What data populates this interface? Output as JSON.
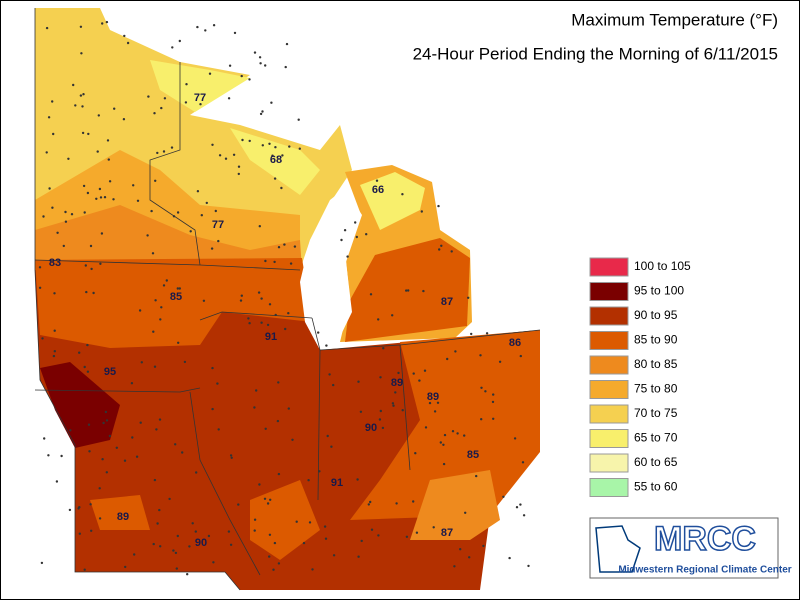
{
  "title": "Maximum Temperature (°F)",
  "subtitle": "24-Hour Period Ending the Morning of 6/11/2015",
  "legend": [
    {
      "label": "100 to 105",
      "color": "#e8294a"
    },
    {
      "label": "95 to 100",
      "color": "#7a0000"
    },
    {
      "label": "90 to 95",
      "color": "#b33000"
    },
    {
      "label": "85 to 90",
      "color": "#dc5a00"
    },
    {
      "label": "80 to 85",
      "color": "#ee8a1e"
    },
    {
      "label": "75 to 80",
      "color": "#f5aa2c"
    },
    {
      "label": "70 to 75",
      "color": "#f5d050"
    },
    {
      "label": "65 to 70",
      "color": "#f8ef6c"
    },
    {
      "label": "60 to 65",
      "color": "#f7f4ab"
    },
    {
      "label": "55 to 60",
      "color": "#a8f5a8"
    }
  ],
  "map_labels": [
    "77",
    "68",
    "66",
    "83",
    "77",
    "85",
    "87",
    "91",
    "86",
    "95",
    "89",
    "89",
    "90",
    "85",
    "91",
    "89",
    "90",
    "87"
  ],
  "logo": {
    "acronym": "MRCC",
    "name": "Midwestern Regional Climate Center"
  }
}
